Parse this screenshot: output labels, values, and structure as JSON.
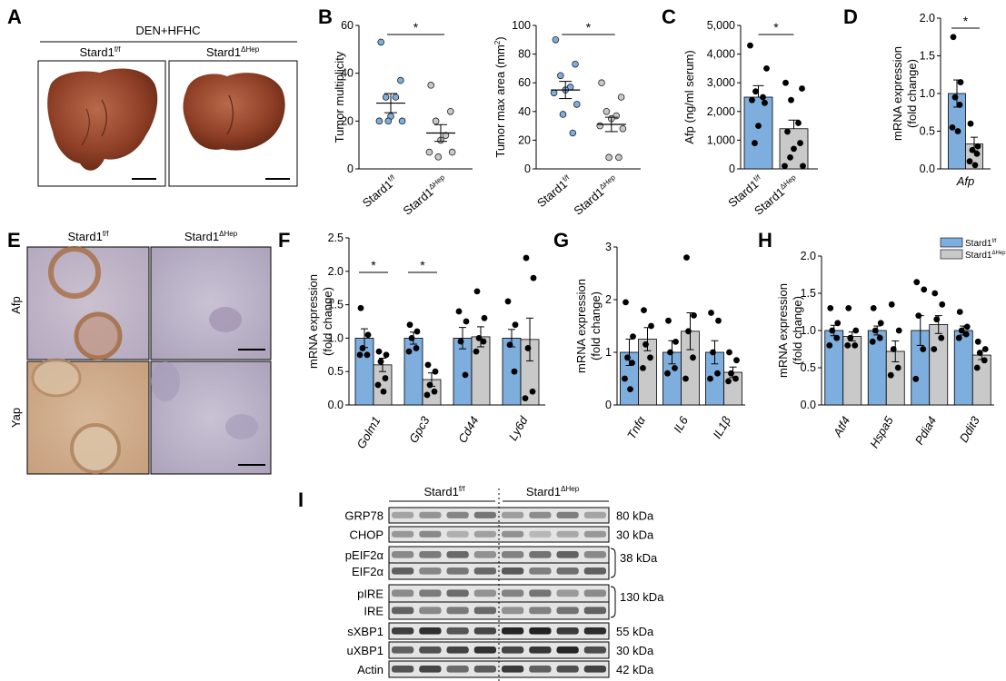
{
  "colors": {
    "flox": "#7eaede",
    "hep": "#c9c9c9",
    "liver": "#9b4a2e",
    "ihc_bg": "#b9b0c8"
  },
  "panelA": {
    "letter": "A",
    "treatment": "DEN+HFHC",
    "label_flox": "Stard1",
    "sup_flox": "f/f",
    "label_hep": "Stard1",
    "sup_hep": "ΔHep"
  },
  "panelB": {
    "letter": "B"
  },
  "panelC": {
    "letter": "C"
  },
  "panelD": {
    "letter": "D"
  },
  "panelE": {
    "letter": "E",
    "col1": "Stard1",
    "col1_sup": "f/f",
    "col2": "Stard1",
    "col2_sup": "ΔHep",
    "row1": "Afp",
    "row2": "Yap"
  },
  "panelF": {
    "letter": "F"
  },
  "panelG": {
    "letter": "G"
  },
  "panelH": {
    "letter": "H"
  },
  "panelI": {
    "letter": "I",
    "group1": "Stard1",
    "group1_sup": "f/f",
    "group2": "Stard1",
    "group2_sup": "ΔHep",
    "blots": [
      {
        "name": "GRP78",
        "size": "80 kDa"
      },
      {
        "name": "CHOP",
        "size": "30 kDa"
      },
      {
        "name": "pEIF2α",
        "size": ""
      },
      {
        "name": "EIF2α",
        "size": "38 kDa"
      },
      {
        "name": "pIRE",
        "size": ""
      },
      {
        "name": "IRE",
        "size": "130 kDa"
      },
      {
        "name": "sXBP1",
        "size": "55 kDa"
      },
      {
        "name": "uXBP1",
        "size": "30 kDa"
      },
      {
        "name": "Actin",
        "size": "42 kDa"
      }
    ]
  },
  "chart_data": [
    {
      "panel": "B",
      "type": "scatter",
      "ylabel": "Tumor multiplicity",
      "ylim": [
        0,
        60
      ],
      "yticks": [
        0,
        20,
        40,
        60
      ],
      "categories": [
        "Stard1f/f",
        "Stard1ΔHep"
      ],
      "significance": "*",
      "series": [
        {
          "name": "Stard1f/f",
          "values": [
            53,
            37,
            30,
            30,
            22,
            20,
            20,
            20
          ],
          "mean": 27.5,
          "sem": 4.0
        },
        {
          "name": "Stard1ΔHep",
          "values": [
            35,
            24,
            20,
            14,
            12,
            7,
            7,
            5
          ],
          "mean": 15,
          "sem": 3.5
        }
      ]
    },
    {
      "panel": "B",
      "type": "scatter",
      "ylabel": "Tumor max area (mm²)",
      "ylim": [
        0,
        100
      ],
      "yticks": [
        0,
        20,
        40,
        60,
        80,
        100
      ],
      "categories": [
        "Stard1f/f",
        "Stard1ΔHep"
      ],
      "significance": "*",
      "series": [
        {
          "name": "Stard1f/f",
          "values": [
            90,
            73,
            65,
            57,
            55,
            53,
            45,
            38,
            25
          ],
          "mean": 55,
          "sem": 6
        },
        {
          "name": "Stard1ΔHep",
          "values": [
            60,
            50,
            40,
            37,
            35,
            30,
            28,
            8,
            8
          ],
          "mean": 31,
          "sem": 5
        }
      ]
    },
    {
      "panel": "C",
      "type": "bar",
      "ylabel": "Afp (ng/ml serum)",
      "ylim": [
        0,
        5000
      ],
      "yticks": [
        "0",
        "1,000",
        "2,000",
        "3,000",
        "4,000",
        "5,000"
      ],
      "categories": [
        "Stard1f/f",
        "Stard1ΔHep"
      ],
      "significance": "*",
      "values": [
        2500,
        1400
      ],
      "sem": [
        400,
        300
      ],
      "points": [
        [
          4300,
          3500,
          2700,
          2500,
          2400,
          2300,
          1500,
          900
        ],
        [
          3000,
          2800,
          2400,
          1600,
          1300,
          900,
          700,
          400,
          100,
          100
        ]
      ]
    },
    {
      "panel": "D",
      "type": "bar",
      "ylabel": "mRNA expression (fold change)",
      "ylim": [
        0,
        2.0
      ],
      "yticks": [
        "0.0",
        "0.5",
        "1.0",
        "1.5",
        "2.0"
      ],
      "categories": [
        "Afp"
      ],
      "series_names": [
        "Stard1f/f",
        "Stard1ΔHep"
      ],
      "significance": "*",
      "values": [
        [
          1.0,
          0.33
        ]
      ],
      "sem": [
        [
          0.18,
          0.09
        ]
      ],
      "points": [
        [
          [
            1.75,
            1.15,
            0.95,
            0.85,
            0.55,
            0.5
          ],
          [
            0.6,
            0.3,
            0.25,
            0.2,
            0.1,
            0.05
          ]
        ]
      ]
    },
    {
      "panel": "F",
      "type": "bar",
      "ylabel": "mRNA expression (fold change)",
      "ylim": [
        0,
        2.5
      ],
      "yticks": [
        "0.0",
        "0.5",
        "1.0",
        "1.5",
        "2.0",
        "2.5"
      ],
      "categories": [
        "Golm1",
        "Gpc3",
        "Cd44",
        "Ly6d"
      ],
      "series_names": [
        "Stard1f/f",
        "Stard1ΔHep"
      ],
      "values": [
        [
          1.0,
          0.6
        ],
        [
          1.0,
          0.38
        ],
        [
          1.0,
          1.02
        ],
        [
          1.0,
          0.98
        ]
      ],
      "sem": [
        [
          0.14,
          0.1
        ],
        [
          0.09,
          0.1
        ],
        [
          0.16,
          0.15
        ],
        [
          0.13,
          0.32
        ]
      ],
      "significance": [
        "*",
        "*",
        "",
        ""
      ],
      "points": [
        [
          [
            1.45,
            1.05,
            0.85,
            0.75,
            0.75
          ],
          [
            0.8,
            0.75,
            0.65,
            0.4,
            0.3,
            0.2
          ]
        ],
        [
          [
            1.2,
            1.1,
            1.0,
            0.85,
            0.8
          ],
          [
            0.6,
            0.5,
            0.3,
            0.2,
            0.15
          ]
        ],
        [
          [
            1.4,
            1.25,
            0.95,
            0.45
          ],
          [
            1.7,
            1.3,
            1.0,
            0.95,
            0.8
          ]
        ],
        [
          [
            1.55,
            1.2,
            0.9,
            0.5
          ],
          [
            2.2,
            1.9,
            0.85,
            0.2,
            0.1
          ]
        ]
      ]
    },
    {
      "panel": "G",
      "type": "bar",
      "ylabel": "mRNA expression (fold change)",
      "ylim": [
        0,
        3
      ],
      "yticks": [
        "0",
        "1",
        "2",
        "3"
      ],
      "categories": [
        "Tnfα",
        "IL6",
        "IL1β"
      ],
      "series_names": [
        "Stard1f/f",
        "Stard1ΔHep"
      ],
      "values": [
        [
          1.0,
          1.25
        ],
        [
          1.0,
          1.4
        ],
        [
          1.0,
          0.62
        ]
      ],
      "sem": [
        [
          0.25,
          0.22
        ],
        [
          0.22,
          0.35
        ],
        [
          0.22,
          0.1
        ]
      ],
      "points": [
        [
          [
            1.95,
            1.3,
            0.9,
            0.8,
            0.5,
            0.3
          ],
          [
            1.8,
            1.5,
            1.15,
            0.9,
            0.7
          ]
        ],
        [
          [
            1.6,
            1.2,
            1.0,
            0.7,
            0.6
          ],
          [
            2.8,
            1.7,
            1.4,
            0.9,
            0.5
          ]
        ],
        [
          [
            1.75,
            1.6,
            1.0,
            0.6,
            0.5
          ],
          [
            1.0,
            0.85,
            0.6,
            0.5,
            0.45
          ]
        ]
      ]
    },
    {
      "panel": "H",
      "type": "bar",
      "ylabel": "mRNA expression (fold change)",
      "ylim": [
        0,
        2.0
      ],
      "yticks": [
        "0.0",
        "0.5",
        "1.0",
        "1.5",
        "2.0"
      ],
      "categories": [
        "Atf4",
        "Hspa5",
        "Pdia4",
        "Ddit3"
      ],
      "series_names": [
        "Stard1f/f",
        "Stard1ΔHep"
      ],
      "values": [
        [
          1.0,
          0.92
        ],
        [
          1.0,
          0.72
        ],
        [
          1.0,
          1.08
        ],
        [
          1.0,
          0.67
        ]
      ],
      "sem": [
        [
          0.07,
          0.06
        ],
        [
          0.06,
          0.14
        ],
        [
          0.2,
          0.12
        ],
        [
          0.06,
          0.06
        ]
      ],
      "points": [
        [
          [
            1.3,
            1.1,
            1.0,
            0.9,
            0.8
          ],
          [
            1.3,
            1.0,
            0.9,
            0.8,
            0.8
          ]
        ],
        [
          [
            1.3,
            1.1,
            1.0,
            0.9,
            0.85
          ],
          [
            1.35,
            1.0,
            0.75,
            0.5,
            0.4
          ]
        ],
        [
          [
            1.65,
            1.55,
            1.2,
            0.75,
            0.35
          ],
          [
            1.5,
            1.35,
            1.15,
            0.9,
            0.75
          ]
        ],
        [
          [
            1.25,
            1.05,
            1.0,
            0.95,
            0.9
          ],
          [
            0.85,
            0.75,
            0.7,
            0.6,
            0.5
          ]
        ]
      ]
    },
    {
      "panel": "H",
      "type": "legend",
      "entries": [
        "Stard1f/f",
        "Stard1ΔHep"
      ]
    }
  ]
}
